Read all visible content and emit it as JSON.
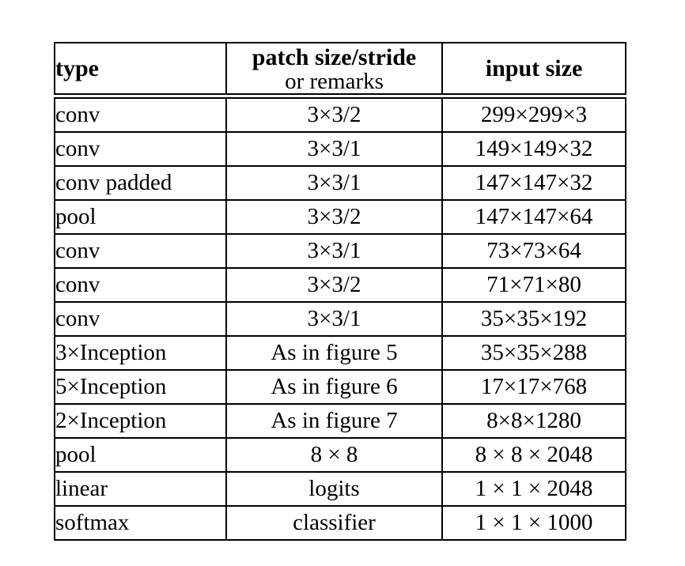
{
  "page": {
    "background_color": "#ffffff",
    "text_color": "#000000",
    "border_color": "#000000"
  },
  "table": {
    "header": {
      "col1": "type",
      "col2_line1": "patch size/stride",
      "col2_line2": "or remarks",
      "col3": "input size"
    },
    "rows": [
      {
        "type": "conv",
        "patch": "3×3/2",
        "input": "299×299×3"
      },
      {
        "type": "conv",
        "patch": "3×3/1",
        "input": "149×149×32"
      },
      {
        "type": "conv padded",
        "patch": "3×3/1",
        "input": "147×147×32"
      },
      {
        "type": "pool",
        "patch": "3×3/2",
        "input": "147×147×64"
      },
      {
        "type": "conv",
        "patch": "3×3/1",
        "input": "73×73×64"
      },
      {
        "type": "conv",
        "patch": "3×3/2",
        "input": "71×71×80"
      },
      {
        "type": "conv",
        "patch": "3×3/1",
        "input": "35×35×192"
      },
      {
        "type": "3×Inception",
        "patch": "As in figure 5",
        "input": "35×35×288"
      },
      {
        "type": "5×Inception",
        "patch": "As in figure 6",
        "input": "17×17×768"
      },
      {
        "type": "2×Inception",
        "patch": "As in figure 7",
        "input": "8×8×1280"
      },
      {
        "type": "pool",
        "patch": "8 × 8",
        "input": "8 × 8 × 2048"
      },
      {
        "type": "linear",
        "patch": "logits",
        "input": "1 × 1 × 2048"
      },
      {
        "type": "softmax",
        "patch": "classifier",
        "input": "1 × 1 × 1000"
      }
    ]
  }
}
